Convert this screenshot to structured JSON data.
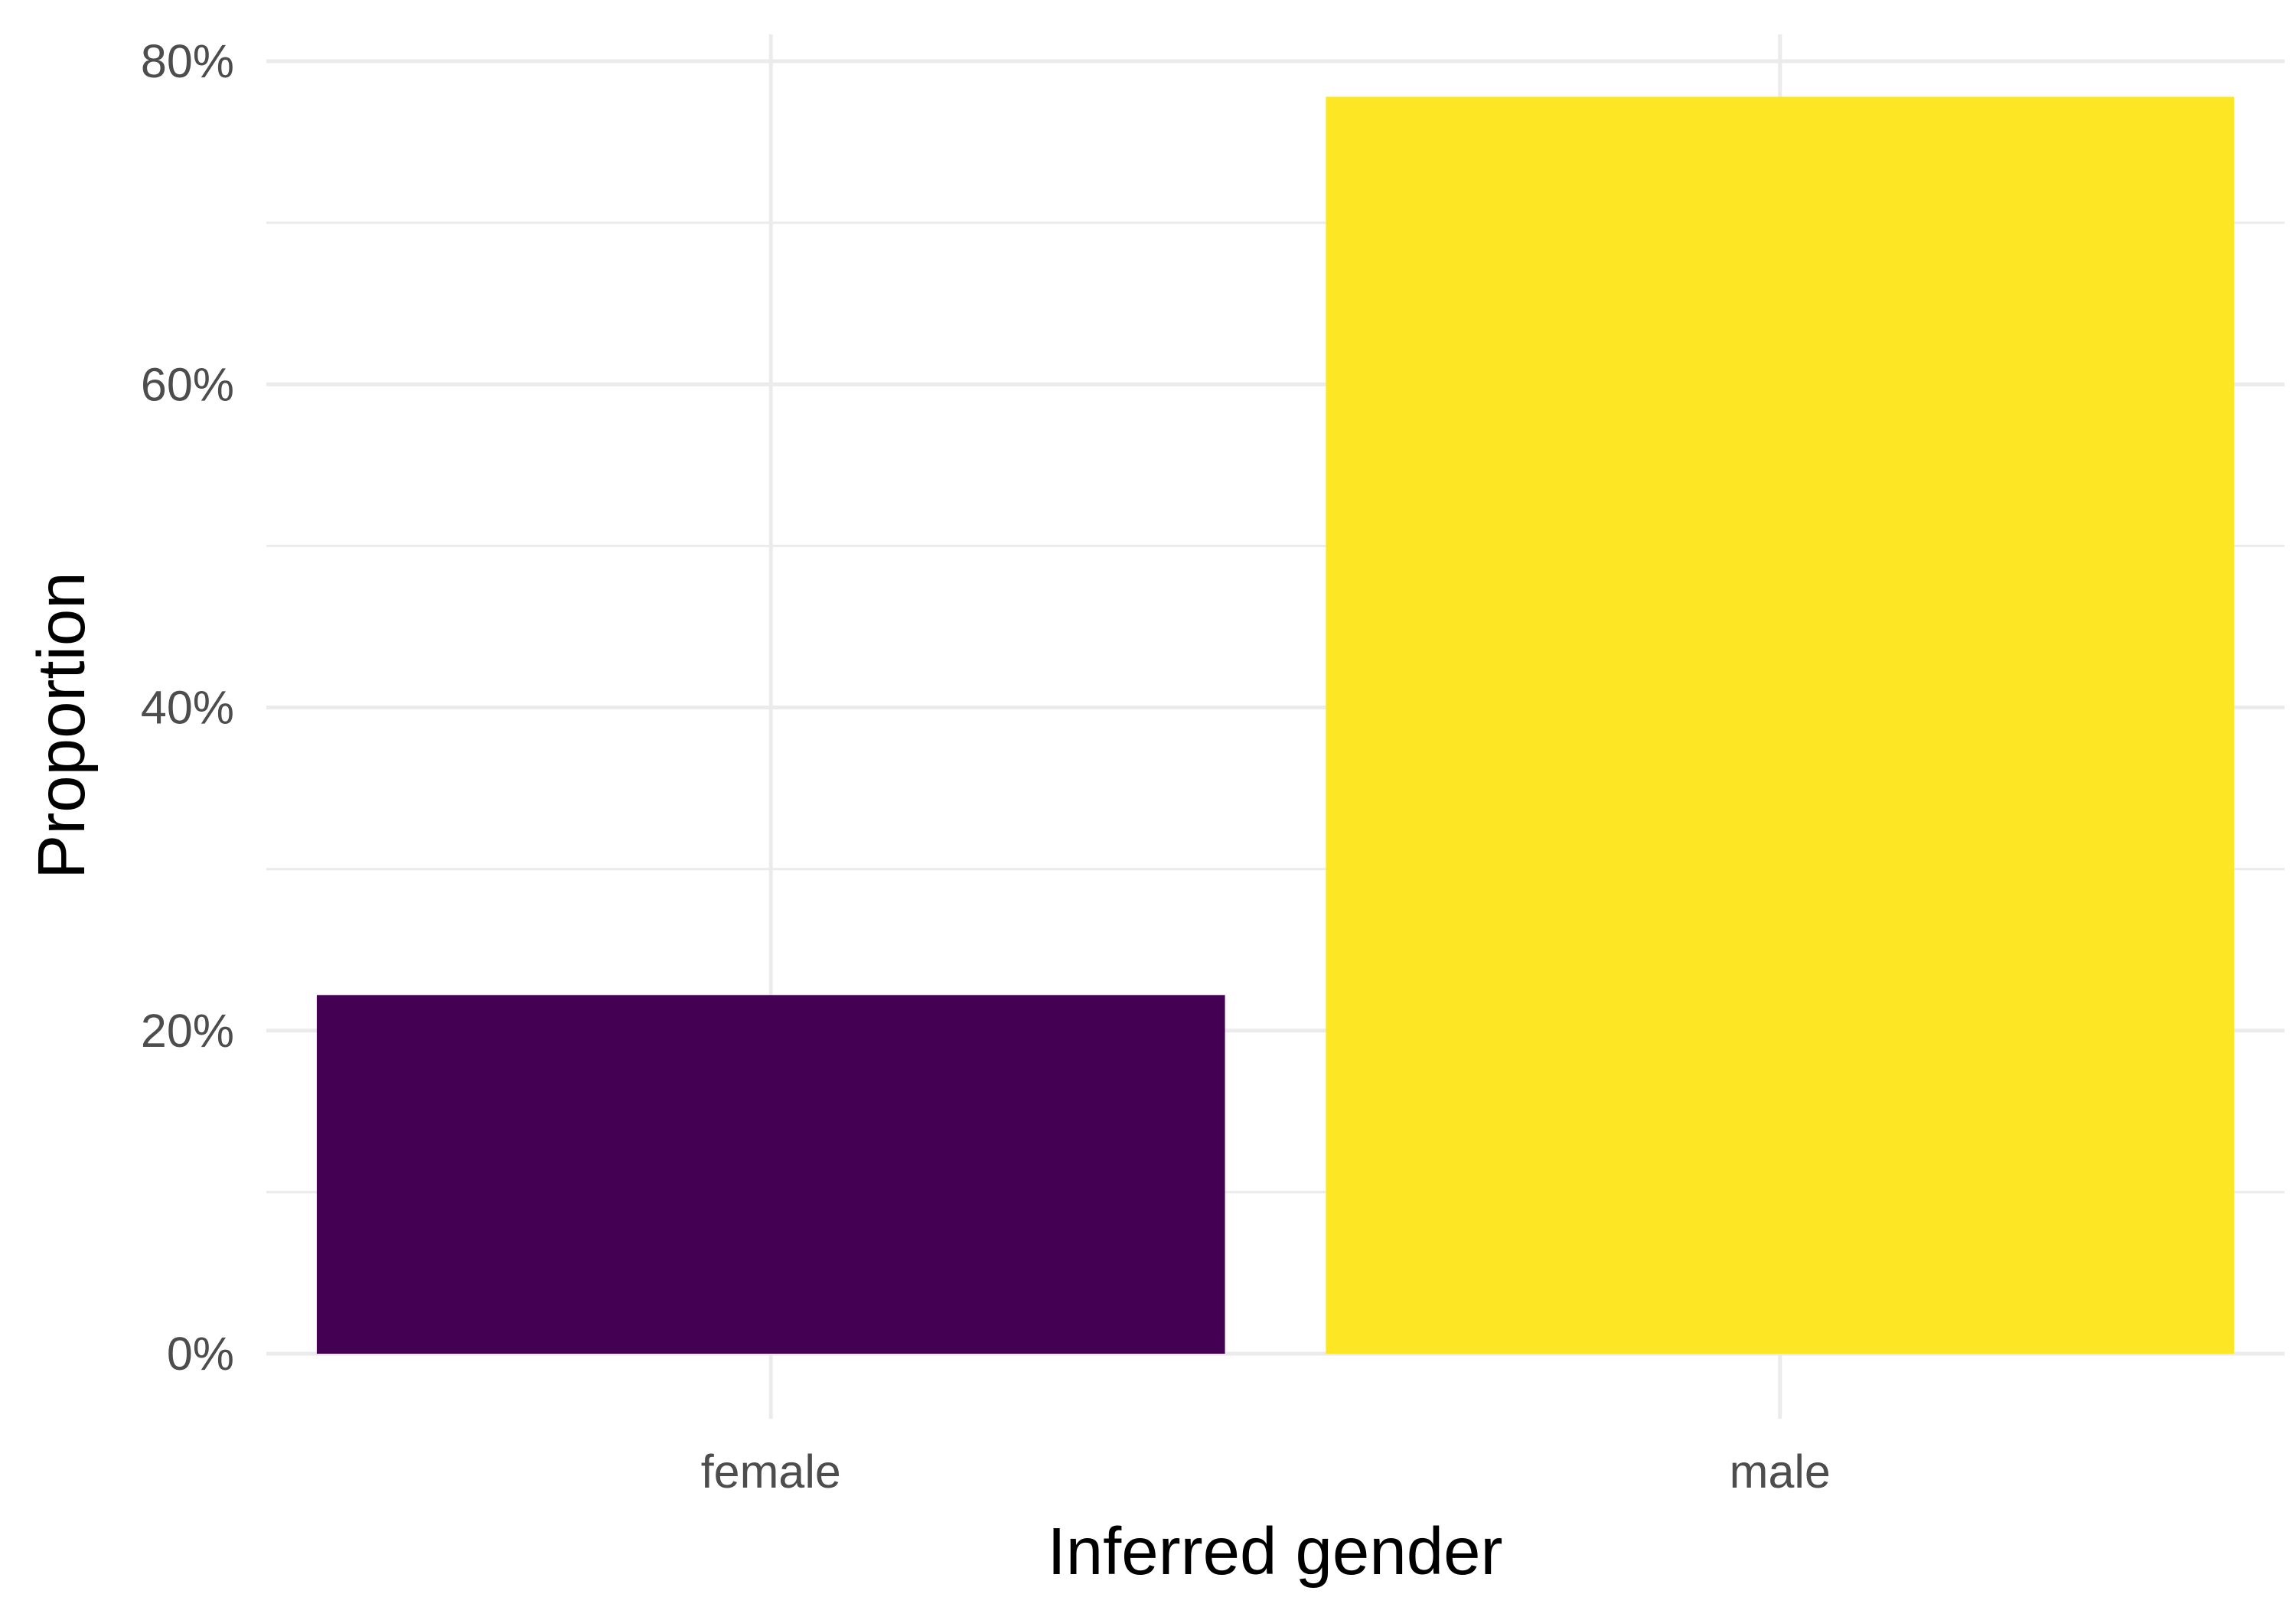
{
  "chart_data": {
    "type": "bar",
    "title": "",
    "xlabel": "Inferred gender",
    "ylabel": "Proportion",
    "categories": [
      "female",
      "male"
    ],
    "values": [
      0.222,
      0.778
    ],
    "colors": [
      "#440154",
      "#FDE725"
    ],
    "ylim": [
      0,
      0.8
    ],
    "yticks": [
      0,
      0.2,
      0.4,
      0.6,
      0.8
    ],
    "ytick_labels": [
      "0%",
      "20%",
      "40%",
      "60%",
      "80%"
    ],
    "grid": true,
    "legend": "none"
  }
}
